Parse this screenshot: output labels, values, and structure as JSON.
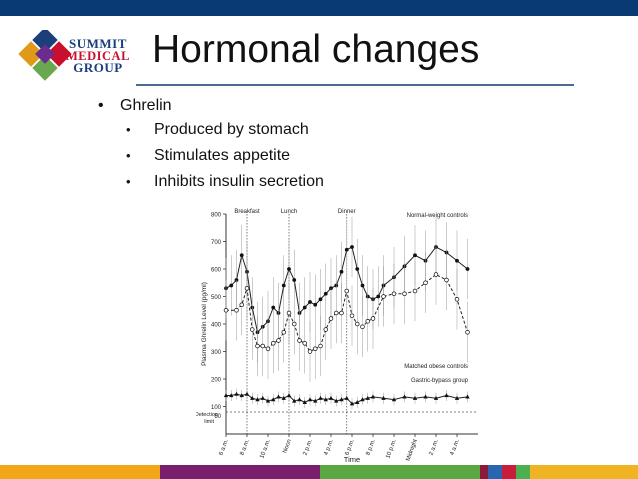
{
  "slide": {
    "title": "Hormonal changes",
    "bullets": [
      {
        "level": 1,
        "text": "Ghrelin"
      },
      {
        "level": 2,
        "text": "Produced by stomach"
      },
      {
        "level": 2,
        "text": "Stimulates appetite"
      },
      {
        "level": 2,
        "text": "Inhibits insulin secretion"
      }
    ],
    "bullet_glyph": "•"
  },
  "logo": {
    "lines": [
      "SUMMIT",
      "MEDICAL",
      "GROUP"
    ],
    "colors": [
      "#1a3f7a",
      "#c8102e",
      "#e09a1a",
      "#6aa84f",
      "#6b2c8f"
    ]
  },
  "theme": {
    "top_bar": "#0a3a73",
    "bottom_bar": [
      "#f2a71b",
      "#7a1f6e",
      "#5aa843",
      "#8b1a3a",
      "#2a66b0",
      "#c81e3c",
      "#4caf50",
      "#f0b323"
    ]
  },
  "chart_data": {
    "type": "line",
    "ylabel": "Plasma Ghrelin Level (pg/ml)",
    "xlabel": "Time",
    "ylim": [
      0,
      800
    ],
    "yticks": [
      100,
      200,
      300,
      400,
      500,
      600,
      700,
      800
    ],
    "ytick_80": "80",
    "detection_limit_label": [
      "Detection",
      "limit"
    ],
    "xticks": [
      "6 a.m.",
      "8 a.m.",
      "10 a.m.",
      "Noon",
      "2 p.m.",
      "4 p.m.",
      "6 p.m.",
      "8 p.m.",
      "10 p.m.",
      "Midnight",
      "2 a.m.",
      "4 a.m."
    ],
    "xlim": [
      6,
      30
    ],
    "meals": [
      {
        "label": "Breakfast",
        "x": 8
      },
      {
        "label": "Lunch",
        "x": 12
      },
      {
        "label": "Dinner",
        "x": 17.5
      }
    ],
    "series": [
      {
        "name": "Normal-weight controls",
        "marker": "filled-circle",
        "x": [
          6,
          6.5,
          7,
          7.5,
          8,
          8.5,
          9,
          9.5,
          10,
          10.5,
          11,
          11.5,
          12,
          12.5,
          13,
          13.5,
          14,
          14.5,
          15,
          15.5,
          16,
          16.5,
          17,
          17.5,
          18,
          18.5,
          19,
          19.5,
          20,
          20.5,
          21,
          22,
          23,
          24,
          25,
          26,
          27,
          28,
          29
        ],
        "values": [
          530,
          540,
          560,
          650,
          590,
          460,
          370,
          390,
          410,
          460,
          440,
          540,
          600,
          560,
          440,
          460,
          480,
          470,
          490,
          510,
          530,
          540,
          590,
          670,
          680,
          600,
          540,
          500,
          490,
          500,
          540,
          570,
          610,
          650,
          630,
          680,
          660,
          630,
          600
        ]
      },
      {
        "name": "Matched obese controls",
        "marker": "open-circle",
        "x": [
          6,
          7,
          7.5,
          8,
          8.5,
          9,
          9.5,
          10,
          10.5,
          11,
          11.5,
          12,
          12.5,
          13,
          13.5,
          14,
          14.5,
          15,
          15.5,
          16,
          16.5,
          17,
          17.5,
          18,
          18.5,
          19,
          19.5,
          20,
          21,
          22,
          23,
          24,
          25,
          26,
          27,
          28,
          29
        ],
        "values": [
          450,
          450,
          470,
          530,
          380,
          320,
          320,
          310,
          330,
          340,
          370,
          440,
          400,
          340,
          330,
          300,
          310,
          320,
          380,
          420,
          440,
          440,
          520,
          430,
          400,
          390,
          410,
          420,
          500,
          510,
          510,
          520,
          550,
          580,
          560,
          490,
          370
        ]
      },
      {
        "name": "Gastric-bypass group",
        "marker": "filled-triangle",
        "x": [
          6,
          6.5,
          7,
          7.5,
          8,
          8.5,
          9,
          9.5,
          10,
          10.5,
          11,
          11.5,
          12,
          12.5,
          13,
          13.5,
          14,
          14.5,
          15,
          15.5,
          16,
          16.5,
          17,
          17.5,
          18,
          18.5,
          19,
          19.5,
          20,
          21,
          22,
          23,
          24,
          25,
          26,
          27,
          28,
          29
        ],
        "values": [
          140,
          140,
          145,
          140,
          145,
          130,
          125,
          130,
          120,
          125,
          135,
          130,
          140,
          120,
          125,
          115,
          125,
          120,
          130,
          125,
          130,
          120,
          125,
          130,
          110,
          115,
          125,
          130,
          135,
          130,
          125,
          135,
          130,
          135,
          130,
          140,
          130,
          135
        ]
      }
    ]
  }
}
